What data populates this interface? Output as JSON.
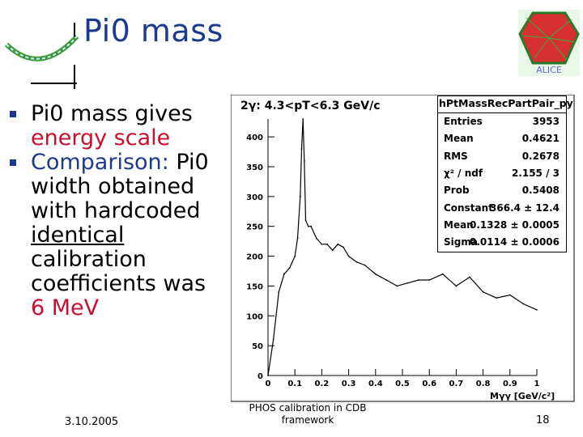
{
  "slide": {
    "title": "Pi0 mass",
    "bullets": [
      {
        "text_a": "Pi0 mass gives",
        "text_b": "energy scale"
      },
      {
        "text_a": "Comparison:",
        "text_b": "Pi0 width obtained with hardcoded",
        "text_c": "identical",
        "text_d": "calibration coefficients was",
        "text_e": "6 MeV"
      }
    ],
    "footer": {
      "date": "3.10.2005",
      "center": "PHOS calibration in CDB framework",
      "page": "18"
    },
    "logo_text": "ALICE"
  },
  "colors": {
    "title": "#1a3a8c",
    "accent_red": "#c8102e",
    "histogram": "#000000"
  },
  "chart_data": {
    "type": "line",
    "title": "2γ: 4.3<pT<6.3 GeV/c",
    "histogram_name": "hPtMassRecPartPair_py",
    "xlabel": "Mγγ [GeV/c²]",
    "ylabel": "",
    "xlim": [
      0,
      1
    ],
    "ylim": [
      0,
      430
    ],
    "x_ticks": [
      "0",
      "0.1",
      "0.2",
      "0.3",
      "0.4",
      "0.5",
      "0.6",
      "0.7",
      "0.8",
      "0.9",
      "1"
    ],
    "y_ticks": [
      "0",
      "50",
      "100",
      "150",
      "200",
      "250",
      "300",
      "350",
      "400"
    ],
    "x": [
      0.0,
      0.02,
      0.04,
      0.06,
      0.08,
      0.1,
      0.11,
      0.12,
      0.125,
      0.13,
      0.135,
      0.14,
      0.15,
      0.16,
      0.18,
      0.2,
      0.22,
      0.24,
      0.26,
      0.28,
      0.3,
      0.33,
      0.36,
      0.4,
      0.44,
      0.48,
      0.52,
      0.56,
      0.6,
      0.65,
      0.7,
      0.75,
      0.8,
      0.85,
      0.9,
      0.95,
      1.0
    ],
    "values": [
      0,
      60,
      140,
      170,
      180,
      200,
      230,
      300,
      380,
      430,
      360,
      260,
      250,
      250,
      230,
      220,
      220,
      210,
      220,
      215,
      200,
      190,
      185,
      170,
      160,
      150,
      155,
      160,
      160,
      170,
      150,
      165,
      140,
      130,
      135,
      120,
      110
    ],
    "stats": [
      {
        "label": "Entries",
        "value": "3953"
      },
      {
        "label": "Mean",
        "value": "0.4621"
      },
      {
        "label": "RMS",
        "value": "0.2678"
      },
      {
        "label": "χ² / ndf",
        "value": "2.155 / 3"
      },
      {
        "label": "Prob",
        "value": "0.5408"
      },
      {
        "label": "Constant",
        "value": "366.4 ± 12.4"
      },
      {
        "label": "Mean",
        "value": "0.1328 ± 0.0005"
      },
      {
        "label": "Sigma",
        "value": "0.0114 ± 0.0006"
      }
    ]
  }
}
